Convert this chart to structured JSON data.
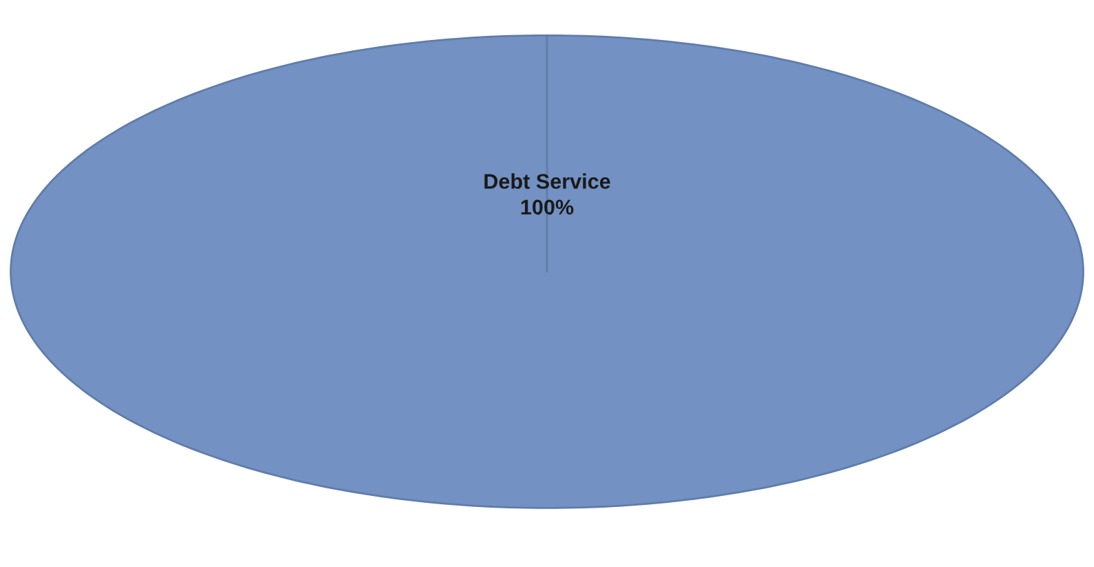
{
  "chart_data": {
    "type": "pie",
    "categories": [
      "Debt Service"
    ],
    "values": [
      100
    ],
    "value_labels": [
      "100%"
    ],
    "colors": [
      "#7391c2"
    ]
  }
}
